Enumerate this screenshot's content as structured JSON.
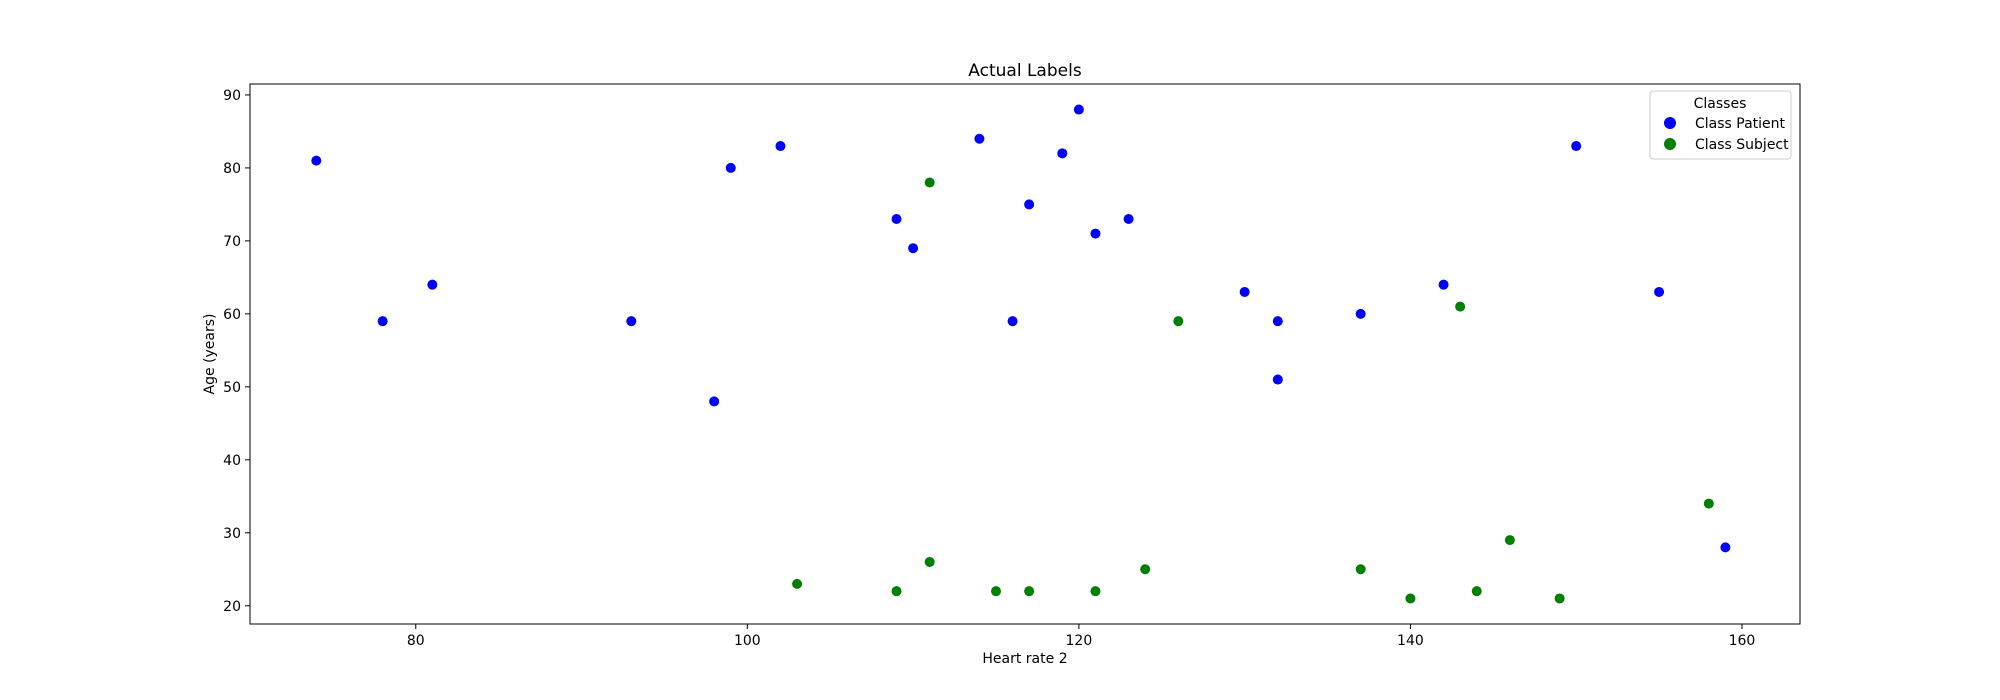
{
  "chart_data": {
    "type": "scatter",
    "title": "Actual Labels",
    "xlabel": "Heart rate 2",
    "ylabel": "Age (years)",
    "xlim": [
      70,
      163.5
    ],
    "ylim": [
      17.5,
      91.5
    ],
    "xticks": [
      80,
      100,
      120,
      140,
      160
    ],
    "yticks": [
      20,
      30,
      40,
      50,
      60,
      70,
      80,
      90
    ],
    "grid": false,
    "legend": {
      "title": "Classes",
      "placement": "top-right"
    },
    "series": [
      {
        "name": "Class Patient",
        "color": "#0000ff",
        "points": [
          {
            "x": 74,
            "y": 81
          },
          {
            "x": 78,
            "y": 59
          },
          {
            "x": 81,
            "y": 64
          },
          {
            "x": 93,
            "y": 59
          },
          {
            "x": 98,
            "y": 48
          },
          {
            "x": 99,
            "y": 80
          },
          {
            "x": 102,
            "y": 83
          },
          {
            "x": 109,
            "y": 73
          },
          {
            "x": 110,
            "y": 69
          },
          {
            "x": 114,
            "y": 84
          },
          {
            "x": 116,
            "y": 59
          },
          {
            "x": 117,
            "y": 75
          },
          {
            "x": 119,
            "y": 82
          },
          {
            "x": 120,
            "y": 88
          },
          {
            "x": 121,
            "y": 71
          },
          {
            "x": 123,
            "y": 73
          },
          {
            "x": 130,
            "y": 63
          },
          {
            "x": 132,
            "y": 59
          },
          {
            "x": 132,
            "y": 51
          },
          {
            "x": 137,
            "y": 60
          },
          {
            "x": 142,
            "y": 64
          },
          {
            "x": 150,
            "y": 83
          },
          {
            "x": 155,
            "y": 63
          },
          {
            "x": 159,
            "y": 28
          }
        ]
      },
      {
        "name": "Class Subject",
        "color": "#008000",
        "points": [
          {
            "x": 103,
            "y": 23
          },
          {
            "x": 109,
            "y": 22
          },
          {
            "x": 111,
            "y": 26
          },
          {
            "x": 111,
            "y": 78
          },
          {
            "x": 115,
            "y": 22
          },
          {
            "x": 117,
            "y": 22
          },
          {
            "x": 121,
            "y": 22
          },
          {
            "x": 124,
            "y": 25
          },
          {
            "x": 126,
            "y": 59
          },
          {
            "x": 137,
            "y": 25
          },
          {
            "x": 140,
            "y": 21
          },
          {
            "x": 143,
            "y": 61
          },
          {
            "x": 144,
            "y": 22
          },
          {
            "x": 146,
            "y": 29
          },
          {
            "x": 149,
            "y": 21
          },
          {
            "x": 158,
            "y": 34
          }
        ]
      }
    ]
  }
}
